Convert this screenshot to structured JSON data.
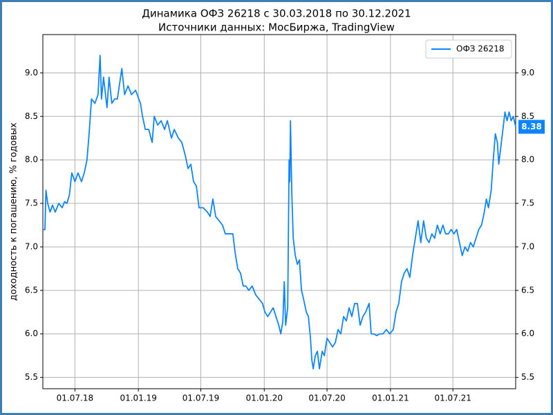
{
  "chart_data": {
    "type": "line",
    "title": "Динамика ОФЗ 26218 с 30.03.2018 по 30.12.2021",
    "subtitle": "Источники данных: МосБиржа, TradingView",
    "y_label": "доходность к погашению, % годовых",
    "legend": "upper right",
    "grid": true,
    "xlim": [
      "2018-03-30",
      "2021-12-30"
    ],
    "xticks": [
      {
        "value": "2018-07-01",
        "label": "01.07.18"
      },
      {
        "value": "2019-01-01",
        "label": "01.01.19"
      },
      {
        "value": "2019-07-01",
        "label": "01.07.19"
      },
      {
        "value": "2020-01-01",
        "label": "01.01.20"
      },
      {
        "value": "2020-07-01",
        "label": "01.07.20"
      },
      {
        "value": "2021-01-01",
        "label": "01.01.21"
      },
      {
        "value": "2021-07-01",
        "label": "01.07.21"
      }
    ],
    "ylim": [
      5.37,
      9.44
    ],
    "yticks": [
      {
        "value": 5.5,
        "label": "5.5"
      },
      {
        "value": 6,
        "label": "6.0"
      },
      {
        "value": 6.5,
        "label": "6.5"
      },
      {
        "value": 7,
        "label": "7.0"
      },
      {
        "value": 7.5,
        "label": "7.5"
      },
      {
        "value": 8,
        "label": "8.0"
      },
      {
        "value": 8.5,
        "label": "8.5"
      },
      {
        "value": 9,
        "label": "9.0"
      }
    ],
    "x": [
      "2018-03-30",
      "2018-04-05",
      "2018-04-08",
      "2018-04-13",
      "2018-04-20",
      "2018-04-27",
      "2018-05-05",
      "2018-05-15",
      "2018-05-25",
      "2018-06-01",
      "2018-06-08",
      "2018-06-15",
      "2018-06-22",
      "2018-07-01",
      "2018-07-10",
      "2018-07-20",
      "2018-07-28",
      "2018-08-05",
      "2018-08-12",
      "2018-08-18",
      "2018-08-28",
      "2018-09-06",
      "2018-09-12",
      "2018-09-16",
      "2018-09-22",
      "2018-10-02",
      "2018-10-08",
      "2018-10-16",
      "2018-10-24",
      "2018-11-01",
      "2018-11-14",
      "2018-11-22",
      "2018-12-02",
      "2018-12-12",
      "2018-12-24",
      "2019-01-07",
      "2019-01-13",
      "2019-01-21",
      "2019-01-31",
      "2019-02-10",
      "2019-02-16",
      "2019-02-26",
      "2019-03-08",
      "2019-03-18",
      "2019-03-26",
      "2019-04-07",
      "2019-04-15",
      "2019-04-27",
      "2019-05-07",
      "2019-05-17",
      "2019-05-25",
      "2019-06-02",
      "2019-06-10",
      "2019-06-18",
      "2019-06-26",
      "2019-07-08",
      "2019-07-20",
      "2019-07-28",
      "2019-08-05",
      "2019-08-13",
      "2019-08-23",
      "2019-09-02",
      "2019-09-10",
      "2019-09-22",
      "2019-10-02",
      "2019-10-08",
      "2019-10-16",
      "2019-10-24",
      "2019-11-01",
      "2019-11-09",
      "2019-11-17",
      "2019-11-27",
      "2019-12-07",
      "2019-12-17",
      "2019-12-27",
      "2020-01-03",
      "2020-01-11",
      "2020-01-19",
      "2020-01-27",
      "2020-02-04",
      "2020-02-12",
      "2020-02-18",
      "2020-02-24",
      "2020-02-28",
      "2020-03-03",
      "2020-03-09",
      "2020-03-13",
      "2020-03-15",
      "2020-03-17",
      "2020-03-21",
      "2020-03-25",
      "2020-03-31",
      "2020-04-06",
      "2020-04-12",
      "2020-04-18",
      "2020-04-24",
      "2020-05-02",
      "2020-05-08",
      "2020-05-14",
      "2020-05-18",
      "2020-05-22",
      "2020-05-28",
      "2020-06-03",
      "2020-06-09",
      "2020-06-17",
      "2020-06-23",
      "2020-07-01",
      "2020-07-09",
      "2020-07-17",
      "2020-07-25",
      "2020-08-02",
      "2020-08-10",
      "2020-08-18",
      "2020-08-26",
      "2020-09-03",
      "2020-09-11",
      "2020-09-19",
      "2020-09-27",
      "2020-10-05",
      "2020-10-13",
      "2020-10-21",
      "2020-10-31",
      "2020-11-06",
      "2020-11-14",
      "2020-11-22",
      "2020-11-30",
      "2020-12-10",
      "2020-12-20",
      "2020-12-30",
      "2021-01-09",
      "2021-01-17",
      "2021-01-25",
      "2021-02-02",
      "2021-02-10",
      "2021-02-18",
      "2021-02-26",
      "2021-03-06",
      "2021-03-14",
      "2021-03-22",
      "2021-03-30",
      "2021-04-07",
      "2021-04-15",
      "2021-04-23",
      "2021-05-01",
      "2021-05-09",
      "2021-05-17",
      "2021-05-25",
      "2021-06-02",
      "2021-06-10",
      "2021-06-18",
      "2021-06-26",
      "2021-07-04",
      "2021-07-12",
      "2021-07-20",
      "2021-07-28",
      "2021-08-05",
      "2021-08-13",
      "2021-08-21",
      "2021-08-29",
      "2021-09-06",
      "2021-09-14",
      "2021-09-22",
      "2021-09-30",
      "2021-10-06",
      "2021-10-12",
      "2021-10-20",
      "2021-10-26",
      "2021-11-01",
      "2021-11-07",
      "2021-11-11",
      "2021-11-17",
      "2021-11-23",
      "2021-11-29",
      "2021-12-05",
      "2021-12-11",
      "2021-12-17",
      "2021-12-23",
      "2021-12-30"
    ],
    "series": [
      {
        "name": "ОФЗ 26218",
        "color": "#0a84ff",
        "values": [
          7.2,
          7.2,
          7.65,
          7.5,
          7.4,
          7.48,
          7.4,
          7.5,
          7.45,
          7.52,
          7.5,
          7.6,
          7.85,
          7.75,
          7.85,
          7.75,
          7.85,
          8.0,
          8.35,
          8.7,
          8.65,
          8.75,
          9.2,
          8.7,
          8.95,
          8.6,
          8.95,
          8.65,
          8.7,
          8.7,
          9.05,
          8.75,
          8.85,
          8.75,
          8.8,
          8.65,
          8.5,
          8.35,
          8.35,
          8.2,
          8.5,
          8.4,
          8.45,
          8.35,
          8.45,
          8.25,
          8.35,
          8.25,
          8.2,
          8.05,
          7.9,
          7.95,
          7.75,
          7.7,
          7.45,
          7.45,
          7.4,
          7.35,
          7.55,
          7.35,
          7.3,
          7.25,
          7.15,
          7.15,
          7.15,
          6.95,
          6.75,
          6.7,
          6.55,
          6.55,
          6.5,
          6.55,
          6.45,
          6.4,
          6.35,
          6.25,
          6.2,
          6.25,
          6.3,
          6.2,
          6.1,
          6.0,
          6.15,
          6.6,
          6.1,
          6.3,
          8.0,
          7.75,
          8.45,
          7.6,
          7.1,
          6.9,
          6.8,
          6.85,
          6.5,
          6.4,
          6.25,
          6.2,
          5.95,
          5.7,
          5.6,
          5.75,
          5.8,
          5.6,
          5.8,
          5.75,
          5.95,
          5.9,
          5.85,
          5.9,
          6.05,
          6.0,
          6.2,
          6.15,
          6.3,
          6.2,
          6.35,
          6.35,
          6.1,
          6.2,
          6.25,
          6.35,
          6.0,
          6.0,
          5.98,
          6.0,
          6.0,
          6.05,
          6.0,
          6.05,
          6.25,
          6.35,
          6.6,
          6.7,
          6.75,
          6.65,
          6.9,
          7.1,
          7.3,
          7.05,
          7.3,
          7.1,
          7.05,
          7.15,
          7.1,
          7.25,
          7.15,
          7.25,
          7.15,
          7.15,
          7.2,
          7.15,
          7.2,
          7.05,
          6.9,
          7.0,
          6.95,
          7.05,
          7.0,
          7.1,
          7.2,
          7.25,
          7.4,
          7.55,
          7.45,
          7.65,
          8.0,
          8.3,
          8.2,
          7.95,
          8.15,
          8.35,
          8.55,
          8.45,
          8.55,
          8.45,
          8.5,
          8.38
        ]
      }
    ]
  }
}
